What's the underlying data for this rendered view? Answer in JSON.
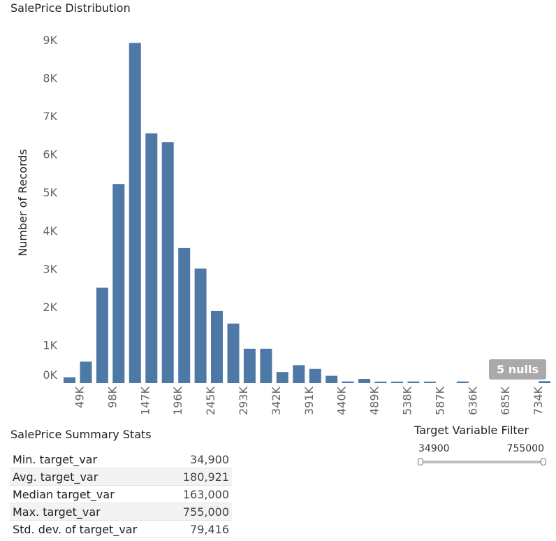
{
  "chart_data": {
    "type": "bar",
    "title": "SalePrice Distribution",
    "xlabel": "",
    "ylabel": "Number of Records",
    "ylim": [
      0,
      9000
    ],
    "yticks": [
      "0K",
      "1K",
      "2K",
      "3K",
      "4K",
      "5K",
      "6K",
      "7K",
      "8K",
      "9K"
    ],
    "xticks": [
      "49K",
      "98K",
      "147K",
      "196K",
      "245K",
      "293K",
      "342K",
      "391K",
      "440K",
      "489K",
      "538K",
      "587K",
      "636K",
      "685K",
      "734K"
    ],
    "values": [
      150,
      560,
      2500,
      5220,
      8920,
      6550,
      6320,
      3540,
      3000,
      1890,
      1560,
      900,
      900,
      290,
      470,
      370,
      190,
      40,
      110,
      20,
      20,
      40,
      20,
      0,
      40,
      0,
      0,
      0,
      0,
      50
    ],
    "nulls_label": "5 nulls",
    "bar_color": "#4e79a7"
  },
  "stats": {
    "title": "SalePrice Summary Stats",
    "rows": [
      {
        "label": "Min. target_var",
        "value": "34,900"
      },
      {
        "label": "Avg. target_var",
        "value": "180,921"
      },
      {
        "label": "Median target_var",
        "value": "163,000"
      },
      {
        "label": "Max. target_var",
        "value": "755,000"
      },
      {
        "label": "Std. dev. of target_var",
        "value": "79,416"
      }
    ]
  },
  "filter": {
    "title": "Target Variable Filter",
    "min": "34900",
    "max": "755000"
  }
}
